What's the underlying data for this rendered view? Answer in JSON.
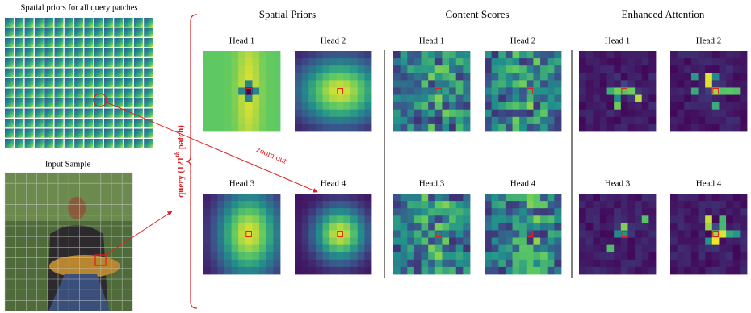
{
  "figure": {
    "left": {
      "priors_title": "Spatial priors for all query patches",
      "input_title": "Input Sample",
      "query_label": {
        "prefix": "query (121",
        "superscript": "th",
        "suffix": " patch)"
      },
      "zoom_label": "zoom out"
    },
    "sections": [
      {
        "title": "Spatial Priors",
        "heads": [
          "Head 1",
          "Head 2",
          "Head 3",
          "Head 4"
        ]
      },
      {
        "title": "Content Scores",
        "heads": [
          "Head 1",
          "Head 2",
          "Head 3",
          "Head 4"
        ]
      },
      {
        "title": "Enhanced Attention",
        "heads": [
          "Head 1",
          "Head 2",
          "Head 3",
          "Head 4"
        ]
      }
    ]
  }
}
